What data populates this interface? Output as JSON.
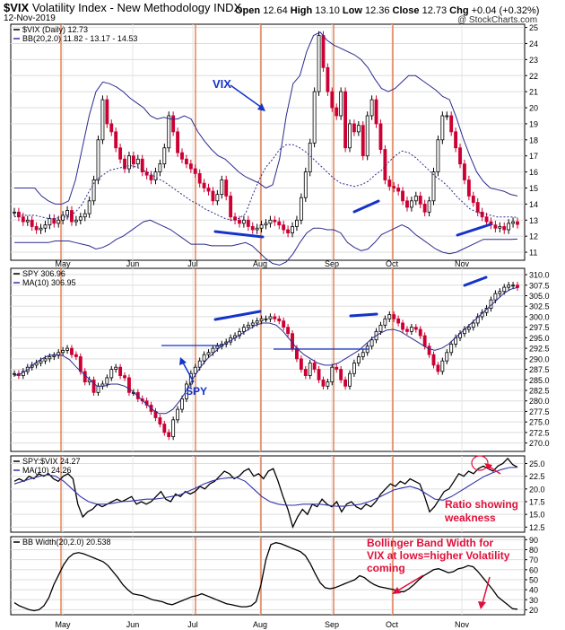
{
  "header": {
    "symbol": "$VIX",
    "description": "Volatility Index - New Methodology",
    "exchange": "INDX",
    "date": "12-Nov-2019",
    "open_label": "Open",
    "open": "12.64",
    "high_label": "High",
    "high": "13.10",
    "low_label": "Low",
    "low": "12.36",
    "close_label": "Close",
    "close": "12.73",
    "chg_label": "Chg",
    "chg": "+0.04 (+0.32%)",
    "watermark": "@ StockCharts.com"
  },
  "months": [
    "May",
    "Jun",
    "Jul",
    "Aug",
    "Sep",
    "Oct",
    "Nov"
  ],
  "annotations": {
    "vix": "VIX",
    "spy": "SPY",
    "ratio_line1": "Ratio showing",
    "ratio_line2": "weakness",
    "bbw_line1": "Bollinger Band Width for",
    "bbw_line2": "VIX at lows=higher Volatility",
    "bbw_line3": "coming"
  },
  "colors": {
    "bull_candle": "#000000",
    "bear_candle": "#cc0033",
    "band": "#2b2b8f",
    "ma": "#3333aa",
    "vertical_marker": "#e0662d",
    "annotation": "#e0103a",
    "trendline": "#1533c8"
  },
  "chart_data": [
    {
      "type": "candlestick",
      "legend": [
        "$VIX (Daily) 12.73",
        "BB(20,2.0) 11.82 - 13.17 - 14.53"
      ],
      "ylim": [
        10.5,
        25.2
      ],
      "yticks": [
        "11",
        "12",
        "13",
        "14",
        "15",
        "16",
        "17",
        "18",
        "19",
        "20",
        "21",
        "22",
        "23",
        "24",
        "25"
      ],
      "series": [
        {
          "name": "$VIX (Daily)",
          "values": [
            13.5,
            13.2,
            12.9,
            13.0,
            12.6,
            12.4,
            12.5,
            12.7,
            13.1,
            12.8,
            13.0,
            13.3,
            13.6,
            12.9,
            13.0,
            13.2,
            13.4,
            14.2,
            15.5,
            18.0,
            20.5,
            19.0,
            18.5,
            17.5,
            16.8,
            16.2,
            17.0,
            16.5,
            16.8,
            16.0,
            15.8,
            15.5,
            16.0,
            16.5,
            17.5,
            19.5,
            18.5,
            17.2,
            16.8,
            16.5,
            16.2,
            15.9,
            15.3,
            15.0,
            14.8,
            14.2,
            14.6,
            15.5,
            14.5,
            13.2,
            13.0,
            12.8,
            13.0,
            12.6,
            12.4,
            12.5,
            12.7,
            12.8,
            13.0,
            12.9,
            12.7,
            12.4,
            12.2,
            12.6,
            13.0,
            14.4,
            16.0,
            17.8,
            21.0,
            24.5,
            22.5,
            21.0,
            20.0,
            19.5,
            21.0,
            17.5,
            19.0,
            18.5,
            18.9,
            17.0,
            19.5,
            20.5,
            19.0,
            17.4,
            15.5,
            15.1,
            15.0,
            14.8,
            14.2,
            13.8,
            14.2,
            14.5,
            14.0,
            13.5,
            14.2,
            16.0,
            18.0,
            19.5,
            19.5,
            18.5,
            17.5,
            16.5,
            15.5,
            14.5,
            14.1,
            13.5,
            13.2,
            12.9,
            12.7,
            12.5,
            12.6,
            12.4,
            12.8,
            12.9,
            12.73
          ]
        },
        {
          "name": "BB upper",
          "values": [
            15.0,
            15.0,
            15.0,
            15.0,
            14.5,
            14.2,
            14.0,
            14.0,
            14.2,
            15.5,
            17.5,
            19.5,
            21.0,
            21.6,
            21.5,
            21.3,
            21.0,
            20.6,
            20.3,
            20.0,
            19.5,
            19.3,
            19.4,
            19.3,
            19.3,
            19.5,
            19.3,
            18.5,
            17.9,
            17.4,
            17.0,
            16.8,
            16.4,
            16.0,
            15.7,
            15.5,
            15.3,
            15.0,
            15.2,
            16.8,
            19.5,
            21.5,
            22.0,
            23.5,
            24.5,
            24.7,
            24.2,
            23.9,
            23.7,
            23.5,
            23.3,
            23.0,
            22.5,
            21.8,
            21.2,
            21.0,
            21.2,
            21.6,
            22.0,
            22.0,
            21.7,
            21.4,
            21.1,
            20.7,
            20.5,
            19.4,
            18.1,
            17.0,
            16.0,
            15.4,
            15.0,
            14.9,
            14.8,
            14.6,
            14.5
          ]
        },
        {
          "name": "BB middle",
          "values": [
            13.2,
            13.3,
            13.3,
            13.3,
            13.2,
            13.1,
            13.1,
            13.2,
            13.2,
            13.5,
            14.0,
            14.8,
            15.5,
            15.8,
            16.1,
            16.2,
            16.3,
            16.4,
            16.3,
            16.1,
            15.9,
            15.6,
            15.4,
            15.1,
            14.8,
            14.5,
            14.2,
            14.0,
            13.7,
            13.5,
            13.3,
            13.1,
            13.0,
            13.1,
            13.4,
            14.5,
            15.5,
            16.3,
            16.8,
            17.4,
            17.7,
            17.7,
            17.5,
            17.2,
            16.8,
            16.4,
            16.0,
            15.6,
            15.3,
            15.2,
            15.1,
            15.2,
            15.4,
            15.8,
            16.1,
            16.6,
            17.0,
            17.3,
            17.2,
            16.9,
            16.5,
            16.1,
            15.7,
            15.4,
            15.0,
            14.5,
            14.1,
            13.7,
            13.5,
            13.4,
            13.3,
            13.2,
            13.2,
            13.2,
            13.17
          ]
        },
        {
          "name": "BB lower",
          "values": [
            11.6,
            11.6,
            11.6,
            11.6,
            11.6,
            11.6,
            11.7,
            11.7,
            11.7,
            11.6,
            11.5,
            11.4,
            11.2,
            11.3,
            11.5,
            11.8,
            12.0,
            12.3,
            12.6,
            12.9,
            13.0,
            12.8,
            12.6,
            12.4,
            12.1,
            11.8,
            11.5,
            11.5,
            11.5,
            11.4,
            11.4,
            11.4,
            11.4,
            11.5,
            11.6,
            11.4,
            11.0,
            10.6,
            10.3,
            10.2,
            10.4,
            10.9,
            11.6,
            12.2,
            12.5,
            12.5,
            12.4,
            12.4,
            12.2,
            11.6,
            11.3,
            11.1,
            11.2,
            11.6,
            12.1,
            12.3,
            12.5,
            12.7,
            12.5,
            12.1,
            11.8,
            11.5,
            11.2,
            11.0,
            10.9,
            11.0,
            11.2,
            11.4,
            11.6,
            11.8,
            11.8,
            11.8,
            11.8,
            11.8,
            11.82
          ]
        }
      ]
    },
    {
      "type": "candlestick",
      "legend": [
        "SPY 306.96",
        "MA(10) 306.95"
      ],
      "ylim": [
        268,
        311.5
      ],
      "yticks": [
        "270.0",
        "272.5",
        "275.0",
        "277.5",
        "280.0",
        "282.5",
        "285.0",
        "287.5",
        "290.0",
        "292.5",
        "295.0",
        "297.5",
        "300.0",
        "302.5",
        "305.0",
        "307.5",
        "310.0"
      ],
      "series": [
        {
          "name": "SPY",
          "values": [
            286.5,
            286.0,
            287.0,
            288.0,
            288.5,
            289.0,
            289.5,
            290.0,
            290.5,
            290.8,
            291.5,
            292.0,
            292.5,
            291.0,
            290.5,
            287.0,
            284.5,
            285.0,
            282.0,
            283.5,
            284.0,
            285.5,
            287.5,
            288.0,
            286.0,
            285.5,
            282.0,
            282.0,
            280.5,
            280.0,
            279.0,
            277.5,
            276.0,
            274.5,
            272.5,
            271.5,
            275.5,
            278.0,
            280.5,
            284.0,
            286.5,
            288.0,
            289.5,
            291.0,
            291.5,
            292.5,
            293.0,
            293.5,
            294.0,
            295.0,
            295.5,
            296.5,
            297.5,
            298.0,
            298.5,
            299.0,
            299.5,
            299.5,
            300.0,
            299.5,
            299.0,
            297.5,
            296.0,
            292.5,
            290.0,
            287.5,
            286.0,
            289.0,
            287.5,
            285.0,
            283.5,
            284.5,
            288.0,
            287.5,
            285.0,
            283.5,
            286.5,
            289.0,
            290.5,
            291.5,
            293.0,
            294.5,
            296.5,
            298.0,
            299.5,
            300.5,
            299.5,
            298.5,
            297.0,
            296.5,
            297.5,
            297.0,
            295.5,
            293.0,
            291.0,
            288.5,
            287.0,
            289.5,
            291.5,
            293.5,
            295.0,
            296.0,
            297.0,
            297.5,
            298.5,
            300.0,
            301.0,
            302.0,
            304.0,
            305.5,
            306.0,
            307.0,
            307.5,
            307.5,
            306.96
          ]
        },
        {
          "name": "MA(10)",
          "values": [
            286.0,
            286.5,
            287.5,
            289.0,
            290.0,
            290.8,
            291.0,
            290.8,
            289.8,
            288.0,
            286.5,
            285.0,
            283.5,
            283.5,
            284.0,
            284.0,
            283.5,
            282.5,
            281.0,
            279.5,
            278.0,
            277.0,
            277.0,
            278.0,
            280.0,
            282.5,
            285.5,
            288.0,
            290.0,
            291.5,
            293.0,
            294.0,
            295.0,
            296.0,
            297.0,
            298.0,
            298.5,
            298.5,
            298.0,
            296.5,
            294.5,
            292.5,
            291.0,
            290.0,
            289.0,
            288.5,
            288.5,
            289.0,
            290.0,
            291.0,
            292.0,
            293.5,
            295.0,
            296.0,
            296.8,
            297.0,
            296.5,
            295.5,
            294.5,
            293.5,
            292.5,
            292.0,
            292.5,
            293.5,
            295.0,
            296.5,
            298.0,
            299.5,
            301.0,
            302.5,
            304.0,
            305.5,
            306.5,
            306.95
          ]
        }
      ]
    },
    {
      "type": "line",
      "legend": [
        "SPY:$VIX 24.27",
        "MA(10) 24.26"
      ],
      "ylim": [
        11.5,
        26.5
      ],
      "yticks": [
        "12.5",
        "15.0",
        "17.5",
        "20.0",
        "22.5",
        "25.0"
      ],
      "series": [
        {
          "name": "SPY:$VIX",
          "values": [
            21.5,
            22.0,
            21.5,
            22.5,
            22.0,
            23.0,
            22.5,
            23.0,
            22.0,
            21.5,
            22.5,
            23.0,
            22.0,
            17.0,
            14.5,
            15.5,
            16.0,
            17.0,
            16.5,
            17.0,
            17.5,
            18.0,
            17.5,
            18.0,
            18.5,
            17.0,
            17.5,
            17.0,
            17.5,
            18.5,
            19.5,
            18.0,
            17.5,
            19.0,
            18.5,
            19.5,
            19.0,
            19.5,
            20.5,
            20.0,
            21.0,
            21.5,
            22.5,
            23.5,
            23.0,
            22.0,
            22.5,
            23.5,
            24.0,
            22.5,
            23.0,
            22.0,
            23.5,
            24.0,
            21.5,
            18.5,
            16.0,
            12.5,
            14.5,
            16.0,
            15.0,
            17.0,
            16.5,
            18.0,
            17.0,
            16.5,
            17.5,
            15.5,
            17.0,
            17.5,
            16.5,
            16.0,
            17.0,
            16.5,
            17.5,
            19.0,
            20.0,
            21.0,
            20.5,
            21.5,
            21.0,
            22.0,
            21.5,
            21.0,
            18.5,
            15.5,
            16.5,
            18.0,
            19.5,
            20.0,
            21.5,
            23.0,
            22.5,
            23.5,
            23.0,
            24.0,
            24.5,
            24.0,
            23.5,
            24.5,
            25.0,
            26.0,
            24.8,
            24.27
          ]
        },
        {
          "name": "MA(10)",
          "values": [
            21.0,
            21.5,
            22.0,
            22.5,
            22.8,
            22.5,
            21.5,
            20.0,
            18.5,
            17.5,
            17.0,
            17.0,
            17.2,
            17.5,
            17.6,
            17.8,
            18.0,
            18.0,
            18.2,
            18.5,
            18.8,
            19.5,
            20.2,
            21.0,
            21.6,
            22.0,
            22.2,
            22.2,
            21.5,
            20.0,
            18.5,
            17.5,
            17.0,
            16.8,
            16.8,
            17.0,
            17.0,
            17.0,
            16.8,
            16.6,
            16.6,
            16.8,
            17.0,
            17.5,
            18.2,
            19.0,
            19.8,
            20.2,
            20.5,
            20.0,
            19.0,
            18.0,
            17.8,
            18.5,
            19.5,
            20.5,
            21.5,
            22.5,
            23.2,
            23.8,
            24.2,
            24.26
          ]
        }
      ]
    },
    {
      "type": "line",
      "legend": [
        "BB Width(20,2.0) 20.538"
      ],
      "ylim": [
        15,
        93
      ],
      "yticks": [
        "20",
        "30",
        "40",
        "50",
        "60",
        "70",
        "80",
        "90"
      ],
      "series": [
        {
          "name": "BB Width",
          "values": [
            27,
            24,
            22,
            20,
            19,
            20,
            24,
            32,
            45,
            55,
            65,
            72,
            76,
            77,
            76,
            74,
            72,
            70,
            68,
            64,
            58,
            52,
            45,
            40,
            36,
            35,
            34,
            32,
            30,
            29,
            28,
            26,
            25,
            27,
            29,
            31,
            33,
            34,
            36,
            34,
            32,
            30,
            28,
            26,
            25,
            24,
            23,
            23,
            24,
            28,
            45,
            70,
            85,
            87,
            86,
            84,
            82,
            80,
            78,
            74,
            66,
            56,
            47,
            42,
            41,
            42,
            44,
            46,
            48,
            50,
            54,
            52,
            48,
            45,
            43,
            42,
            41,
            40,
            38,
            38,
            41,
            45,
            50,
            54,
            57,
            60,
            61,
            59,
            57,
            58,
            61,
            62,
            64,
            63,
            58,
            52,
            46,
            40,
            33,
            29,
            25,
            21,
            20.538
          ]
        }
      ]
    }
  ]
}
